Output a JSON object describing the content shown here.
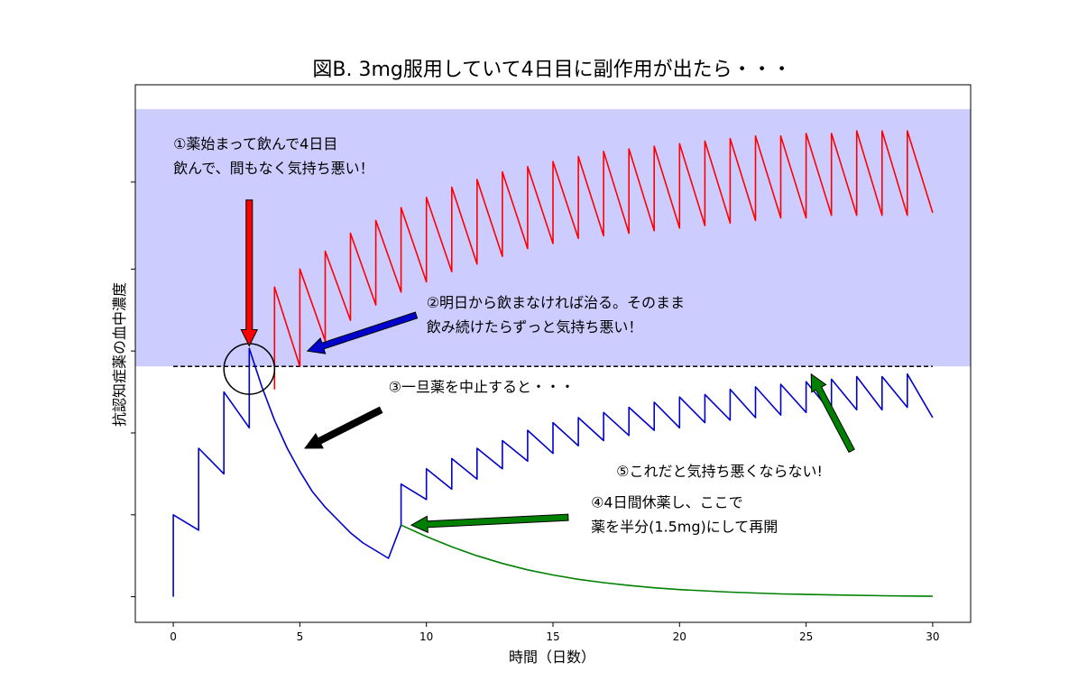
{
  "chart_data": {
    "type": "line",
    "title": "図B. 3mg服用していて4日目に副作用が出たら・・・",
    "xlabel": "時間（日数）",
    "ylabel": "抗認知症薬の血中濃度",
    "xlim": [
      -1.5,
      31.5
    ],
    "ylim": [
      -1.0,
      20.0
    ],
    "xticks": [
      0,
      5,
      10,
      15,
      20,
      25,
      30
    ],
    "yticks_unlabeled": [
      0,
      3.2,
      6.4,
      9.6,
      12.8,
      16.2
    ],
    "threshold": 9.0,
    "shaded_region": [
      9.0,
      19.05
    ],
    "colors": {
      "red": "#ff0000",
      "blue": "#0000cc",
      "green": "#008000",
      "shade": "#ccccff",
      "black": "#000000"
    },
    "series": [
      {
        "color": "red",
        "x": [
          4,
          4,
          5,
          5,
          6,
          6,
          7,
          7,
          8,
          8,
          9,
          9,
          10,
          10,
          11,
          11,
          12,
          12,
          13,
          13,
          14,
          14,
          15,
          15,
          16,
          16,
          17,
          17,
          18,
          18,
          19,
          19,
          20,
          20,
          21,
          21,
          22,
          22,
          23,
          23,
          24,
          24,
          25,
          25,
          26,
          26,
          27,
          27,
          28,
          28,
          29,
          29,
          30
        ],
        "y": [
          8.1,
          12.1,
          9.0,
          12.8,
          10.0,
          13.5,
          10.8,
          14.2,
          11.4,
          14.7,
          11.9,
          15.2,
          12.3,
          15.6,
          12.7,
          16.0,
          13.0,
          16.3,
          13.3,
          16.6,
          13.6,
          16.8,
          13.8,
          17.0,
          14.0,
          17.2,
          14.1,
          17.4,
          14.2,
          17.5,
          14.3,
          17.6,
          14.4,
          17.7,
          14.5,
          17.8,
          14.6,
          17.9,
          14.7,
          18.0,
          14.8,
          18.0,
          14.8,
          18.1,
          14.9,
          18.1,
          14.9,
          18.2,
          14.9,
          18.2,
          14.9,
          18.2,
          15.0
        ]
      },
      {
        "color": "blue",
        "x": [
          0,
          0,
          1,
          1,
          2,
          2,
          3,
          3,
          3.5,
          4,
          4.5,
          5,
          5.5,
          6,
          6.5,
          7,
          7.5,
          8,
          8.5,
          9
        ],
        "y": [
          0,
          3.2,
          2.6,
          5.8,
          4.8,
          8.0,
          6.6,
          9.7,
          8.2,
          6.9,
          5.8,
          4.9,
          4.1,
          3.5,
          3.0,
          2.5,
          2.1,
          1.8,
          1.5,
          2.8
        ]
      },
      {
        "color": "blue",
        "x": [
          9,
          9,
          10,
          10,
          11,
          11,
          12,
          12,
          13,
          13,
          14,
          14,
          15,
          15,
          16,
          16,
          17,
          17,
          18,
          18,
          19,
          19,
          20,
          20,
          21,
          21,
          22,
          22,
          23,
          23,
          24,
          24,
          25,
          25,
          26,
          26,
          27,
          27,
          28,
          28,
          29,
          29,
          30
        ],
        "y": [
          2.8,
          4.4,
          3.8,
          5.0,
          4.2,
          5.4,
          4.6,
          5.8,
          5.0,
          6.1,
          5.3,
          6.5,
          5.6,
          6.8,
          5.9,
          7.0,
          6.1,
          7.2,
          6.3,
          7.4,
          6.5,
          7.6,
          6.6,
          7.8,
          6.8,
          7.9,
          6.9,
          8.1,
          7.0,
          8.2,
          7.1,
          8.3,
          7.2,
          8.4,
          7.2,
          8.5,
          7.3,
          8.6,
          7.3,
          8.6,
          7.4,
          8.7,
          7.0
        ]
      },
      {
        "color": "green",
        "x": [
          9,
          10,
          11,
          12,
          13,
          14,
          15,
          16,
          17,
          18,
          19,
          20,
          22,
          24,
          26,
          28,
          30
        ],
        "y": [
          2.8,
          2.35,
          1.95,
          1.6,
          1.3,
          1.05,
          0.85,
          0.68,
          0.55,
          0.44,
          0.35,
          0.28,
          0.18,
          0.11,
          0.07,
          0.04,
          0.02
        ]
      }
    ],
    "annotations": [
      {
        "lines": [
          "①薬始まって飲んで4日目",
          "飲んで、間もなく気持ち悪い！"
        ],
        "text_xy": [
          0,
          17.5
        ],
        "arrow_from": [
          3,
          15.5
        ],
        "arrow_to": [
          3,
          9.8
        ],
        "arrow_color": "red"
      },
      {
        "lines": [
          "②明日から飲まなければ治る。そのまま",
          "飲み続けたらずっと気持ち悪い！"
        ],
        "text_xy": [
          10,
          11.3
        ],
        "arrow_from": [
          9.6,
          11.0
        ],
        "arrow_to": [
          5.3,
          9.6
        ],
        "arrow_color": "blue"
      },
      {
        "lines": [
          "③一旦薬を中止すると・・・"
        ],
        "text_xy": [
          8.5,
          8.0
        ],
        "arrow_from": [
          8.2,
          7.3
        ],
        "arrow_to": [
          5.2,
          5.8
        ],
        "arrow_color": "black"
      },
      {
        "lines": [
          "④4日間休薬し、ここで",
          "薬を半分(1.5mg)にして再開"
        ],
        "text_xy": [
          16.5,
          3.5
        ],
        "arrow_from": [
          15.6,
          3.1
        ],
        "arrow_to": [
          9.4,
          2.8
        ],
        "arrow_color": "green"
      },
      {
        "lines": [
          "⑤これだと気持ち悪くならない!"
        ],
        "text_xy": [
          17.5,
          4.7
        ],
        "arrow_from": [
          26.8,
          5.7
        ],
        "arrow_to": [
          25.2,
          8.7
        ],
        "arrow_color": "green"
      }
    ],
    "circle": {
      "center": [
        3,
        8.9
      ],
      "radius_x_units": 1.0
    }
  }
}
